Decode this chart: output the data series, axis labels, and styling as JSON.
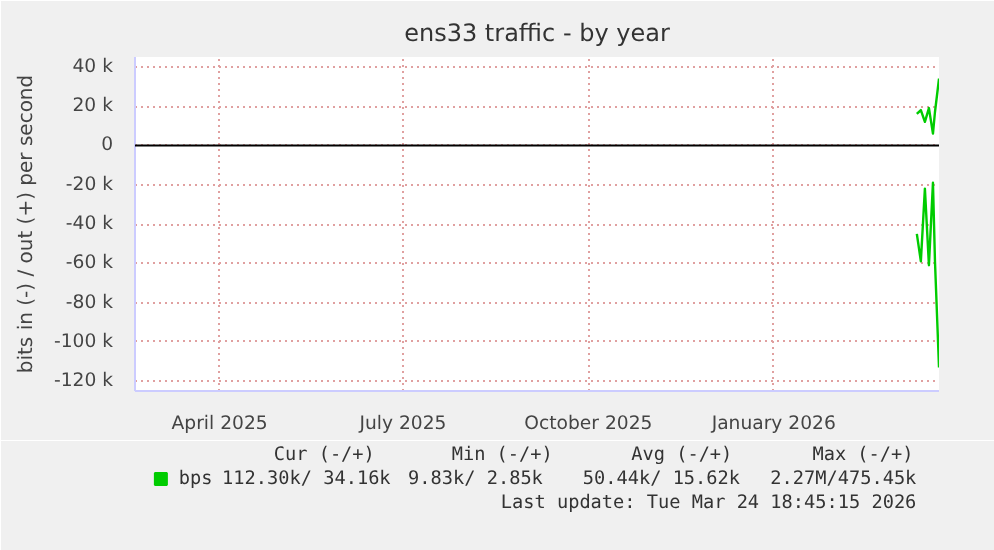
{
  "chart_data": {
    "type": "line",
    "title": "ens33 traffic - by year",
    "ylabel": "bits in (-) / out (+) per second",
    "xlim": [
      "2025-02-18",
      "2026-03-24"
    ],
    "xticks": [
      {
        "value": "2025-04-01",
        "label": "April 2025"
      },
      {
        "value": "2025-07-01",
        "label": "July 2025"
      },
      {
        "value": "2025-10-01",
        "label": "October 2025"
      },
      {
        "value": "2026-01-01",
        "label": "January 2026"
      }
    ],
    "ylim": [
      -125000,
      45000
    ],
    "yticks": [
      {
        "value": 40000,
        "label": "40 k"
      },
      {
        "value": 20000,
        "label": "20 k"
      },
      0,
      {
        "value": -20000,
        "label": "-20 k"
      },
      {
        "value": -40000,
        "label": "-40 k"
      },
      {
        "value": -60000,
        "label": "-60 k"
      },
      {
        "value": -80000,
        "label": "-80 k"
      },
      {
        "value": -100000,
        "label": "-100 k"
      },
      {
        "value": -120000,
        "label": "-120 k"
      }
    ],
    "x": [
      "2026-03-13",
      "2026-03-15",
      "2026-03-17",
      "2026-03-19",
      "2026-03-21",
      "2026-03-22",
      "2026-03-24"
    ],
    "series": [
      {
        "name": "bps",
        "color": "#00cc00",
        "values": [
          16000,
          18000,
          12000,
          19000,
          6000,
          17000,
          34000
        ]
      },
      {
        "color": "#00cc00",
        "values": [
          -45000,
          -59000,
          -22000,
          -61000,
          -19000,
          -59000,
          -113000
        ]
      }
    ],
    "ref_lines": [
      {
        "axis": "y",
        "value": 0,
        "color": "#000000"
      }
    ],
    "grid": true,
    "legend": "bottom",
    "marker": "none",
    "line_style": "solid",
    "annotations": [
      "Cur (-/+)",
      "Min (-/+)",
      "Avg (-/+)",
      "Max (-/+)",
      "112.30k/ 34.16k",
      "9.83k/   2.85k",
      "50.44k/ 15.62k",
      "2.27M/475.45k",
      "Last update: Tue Mar 24 18:45:15 2026"
    ]
  }
}
